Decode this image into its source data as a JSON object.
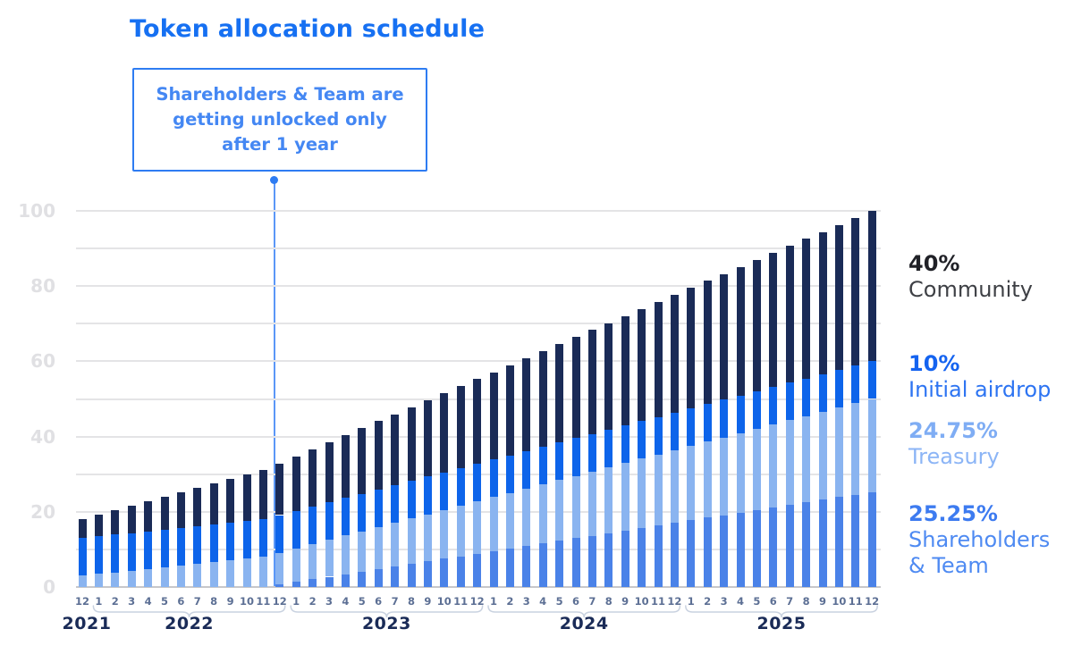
{
  "title": {
    "text": "Token allocation schedule"
  },
  "annotation": {
    "text": "Shareholders & Team are getting unlocked only after 1 year",
    "points_to": "12/2022"
  },
  "legend": [
    {
      "pct": "40%",
      "label": "Community",
      "pct_color": "#202127",
      "label_color": "#3e4045"
    },
    {
      "pct": "10%",
      "label": "Initial airdrop",
      "pct_color": "#1463f0",
      "label_color": "#2d74f2"
    },
    {
      "pct": "24.75%",
      "label": "Treasury",
      "pct_color": "#7fadf4",
      "label_color": "#8cb5f6"
    },
    {
      "pct": "25.25%",
      "label": "Shareholders & Team",
      "pct_color": "#3d7bf0",
      "label_color": "#4e8af2"
    }
  ],
  "chart_data": {
    "type": "bar",
    "subtype": "stacked",
    "title": "Token allocation schedule",
    "xlabel": "",
    "ylabel": "",
    "ylim": [
      0,
      100
    ],
    "yticks": [
      0,
      20,
      40,
      60,
      80,
      100
    ],
    "grid_step": 10,
    "x_month_labels": [
      "12",
      "1",
      "2",
      "3",
      "4",
      "5",
      "6",
      "7",
      "8",
      "9",
      "10",
      "11",
      "12",
      "1",
      "2",
      "3",
      "4",
      "5",
      "6",
      "7",
      "8",
      "9",
      "10",
      "11",
      "12",
      "1",
      "2",
      "3",
      "4",
      "5",
      "6",
      "7",
      "8",
      "9",
      "10",
      "11",
      "12",
      "1",
      "2",
      "3",
      "4",
      "5",
      "6",
      "7",
      "8",
      "9",
      "10",
      "11",
      "12"
    ],
    "year_groups": [
      {
        "label": "2021",
        "start": 0,
        "end": 0
      },
      {
        "label": "2022",
        "start": 1,
        "end": 12
      },
      {
        "label": "2023",
        "start": 13,
        "end": 24
      },
      {
        "label": "2024",
        "start": 25,
        "end": 36
      },
      {
        "label": "2025",
        "start": 37,
        "end": 48
      }
    ],
    "series": [
      {
        "name": "Shareholders & Team",
        "color": "#4a82e8",
        "values": [
          0,
          0,
          0,
          0,
          0,
          0,
          0,
          0,
          0,
          0,
          0,
          0,
          0.68,
          1.36,
          2.05,
          2.73,
          3.41,
          4.09,
          4.78,
          5.46,
          6.14,
          6.82,
          7.51,
          8.19,
          8.87,
          9.55,
          10.24,
          10.92,
          11.6,
          12.28,
          12.97,
          13.65,
          14.33,
          15.01,
          15.7,
          16.38,
          17.06,
          17.74,
          18.43,
          19.11,
          19.79,
          20.47,
          21.16,
          21.84,
          22.52,
          23.2,
          23.89,
          24.57,
          25.25
        ]
      },
      {
        "name": "Treasury",
        "color": "#8ab4f0",
        "values": [
          3.0,
          3.45,
          3.91,
          4.36,
          4.81,
          5.27,
          5.72,
          6.17,
          6.63,
          7.08,
          7.53,
          7.98,
          8.44,
          8.89,
          9.34,
          9.8,
          10.25,
          10.7,
          11.16,
          11.61,
          12.06,
          12.52,
          12.97,
          13.42,
          13.88,
          14.33,
          14.78,
          15.23,
          15.69,
          16.14,
          16.59,
          17.05,
          17.5,
          17.95,
          18.41,
          18.86,
          19.31,
          19.77,
          20.22,
          20.67,
          21.13,
          21.58,
          22.03,
          22.48,
          22.94,
          23.39,
          23.84,
          24.3,
          24.75
        ]
      },
      {
        "name": "Initial airdrop",
        "color": "#0d64ea",
        "values": [
          10,
          10,
          10,
          10,
          10,
          10,
          10,
          10,
          10,
          10,
          10,
          10,
          10,
          10,
          10,
          10,
          10,
          10,
          10,
          10,
          10,
          10,
          10,
          10,
          10,
          10,
          10,
          10,
          10,
          10,
          10,
          10,
          10,
          10,
          10,
          10,
          10,
          10,
          10,
          10,
          10,
          10,
          10,
          10,
          10,
          10,
          10,
          10,
          10
        ]
      },
      {
        "name": "Community",
        "color": "#1a2b57",
        "values": [
          5.0,
          5.73,
          6.46,
          7.19,
          7.92,
          8.65,
          9.38,
          10.1,
          10.83,
          11.56,
          12.29,
          13.02,
          13.75,
          14.48,
          15.21,
          15.94,
          16.67,
          17.4,
          18.13,
          18.85,
          19.58,
          20.31,
          21.04,
          21.77,
          22.5,
          23.23,
          23.96,
          24.69,
          25.42,
          26.15,
          26.88,
          27.6,
          28.33,
          29.06,
          29.79,
          30.52,
          31.25,
          31.98,
          32.71,
          33.44,
          34.17,
          34.9,
          35.63,
          36.35,
          37.08,
          37.81,
          38.54,
          39.27,
          40.0
        ]
      }
    ],
    "legend_position": "right",
    "grid": true
  }
}
